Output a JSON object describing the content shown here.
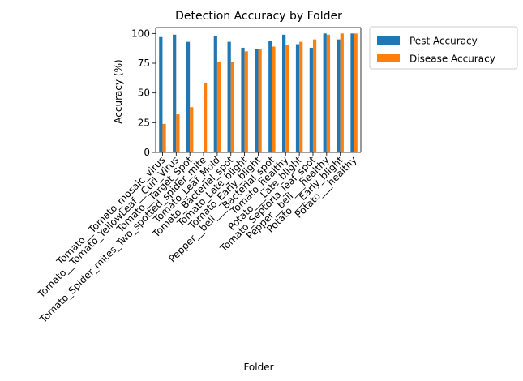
{
  "chart_data": {
    "type": "bar",
    "title": "Detection Accuracy by Folder",
    "xlabel": "Folder",
    "ylabel": "Accuracy (%)",
    "ylim": [
      0,
      105
    ],
    "yticks": [
      "0",
      "25",
      "50",
      "75",
      "100"
    ],
    "grid": false,
    "legend_position": "outside upper-right",
    "categories": [
      "Tomato__Tomato_mosaic_virus",
      "Tomato__Tomato_YellowLeaf__Curl_Virus",
      "Tomato__Target_Spot",
      "Tomato_Spider_mites_Two_spotted_spider_mite",
      "Tomato_Leaf_Mold",
      "Tomato_Bacterial_spot",
      "Tomato_Late_blight",
      "Tomato_Early_blight",
      "Pepper__bell___Bacterial_spot",
      "Tomato_healthy",
      "Potato___Late_blight",
      "Tomato_Septoria_leaf_spot",
      "Pepper__bell___healthy",
      "Potato___Early_blight",
      "Potato___healthy"
    ],
    "series": [
      {
        "name": "Pest Accuracy",
        "color": "#1f77b4",
        "values": [
          97,
          99,
          93,
          0.5,
          98,
          93,
          88,
          87,
          94,
          99,
          91,
          88,
          100,
          95,
          100
        ]
      },
      {
        "name": "Disease Accuracy",
        "color": "#ff7f0e",
        "values": [
          24,
          32,
          38,
          58,
          76,
          76,
          85,
          87,
          89,
          90,
          93,
          95,
          99,
          100,
          100
        ]
      }
    ]
  }
}
